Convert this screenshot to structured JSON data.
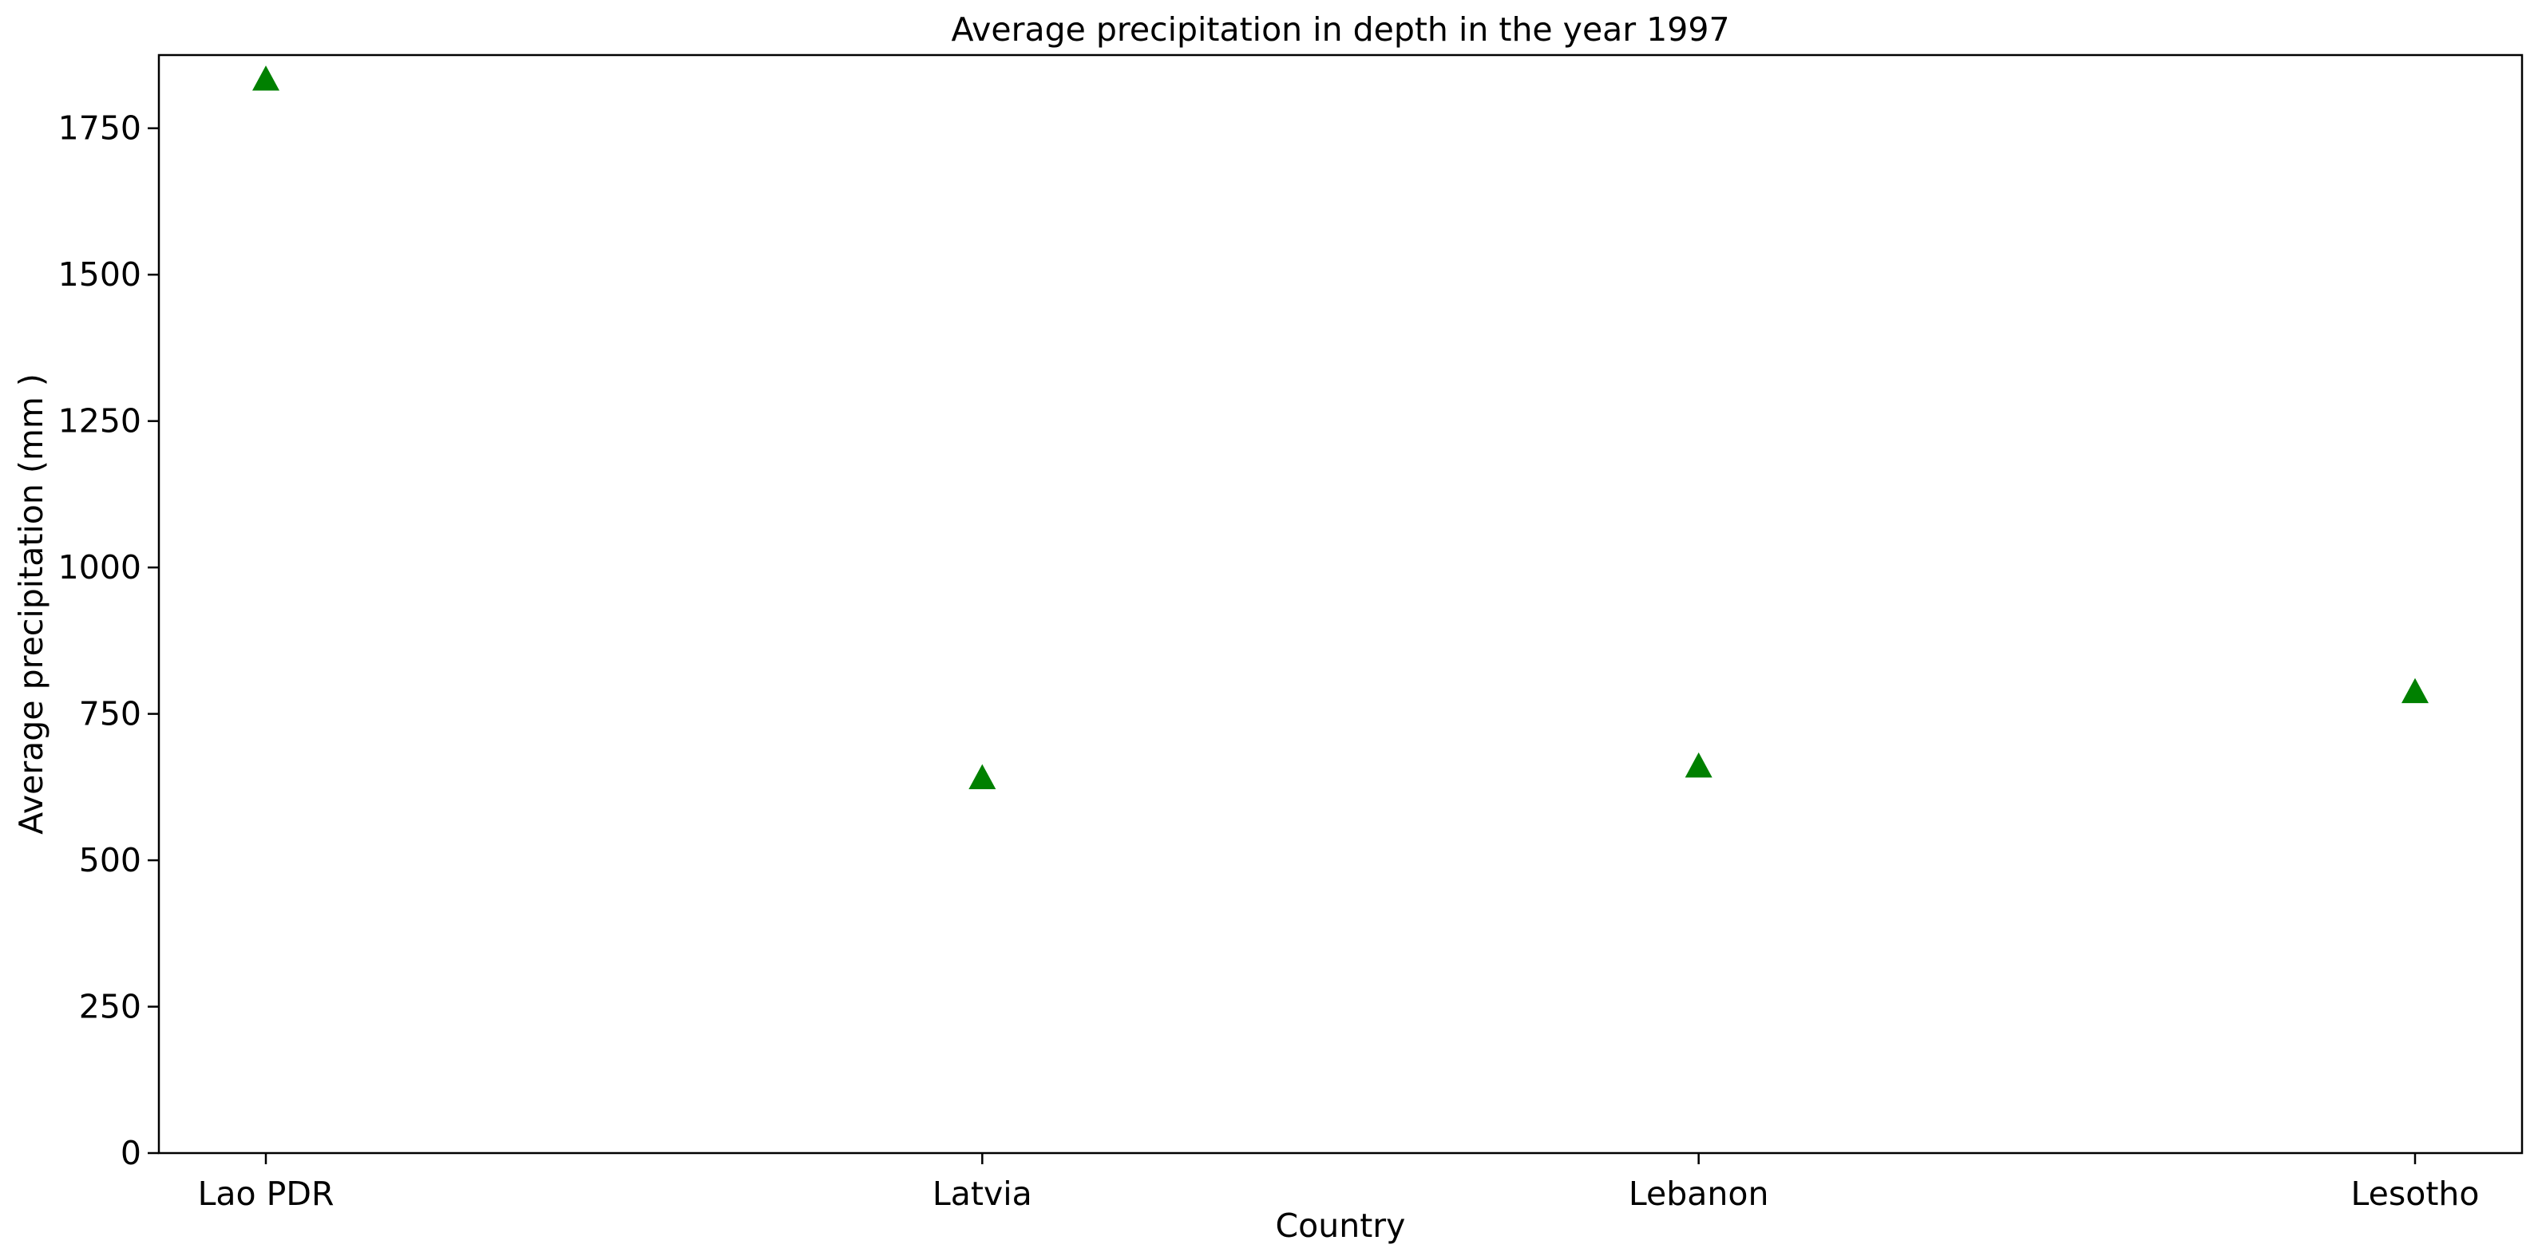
{
  "chart_data": {
    "type": "scatter",
    "title": "Average precipitation in depth in the year 1997",
    "xlabel": "Country",
    "ylabel": "Average precipitation (mm )",
    "categories": [
      "Lao PDR",
      "Latvia",
      "Lebanon",
      "Lesotho"
    ],
    "series": [
      {
        "values": [
          1834,
          641,
          661,
          788
        ]
      }
    ],
    "ylim": [
      0,
      1875
    ],
    "yticks": [
      0,
      250,
      500,
      750,
      1000,
      1250,
      1500,
      1750
    ],
    "marker": "triangle-up",
    "marker_color": "#008000",
    "grid": false,
    "legend": "none"
  }
}
